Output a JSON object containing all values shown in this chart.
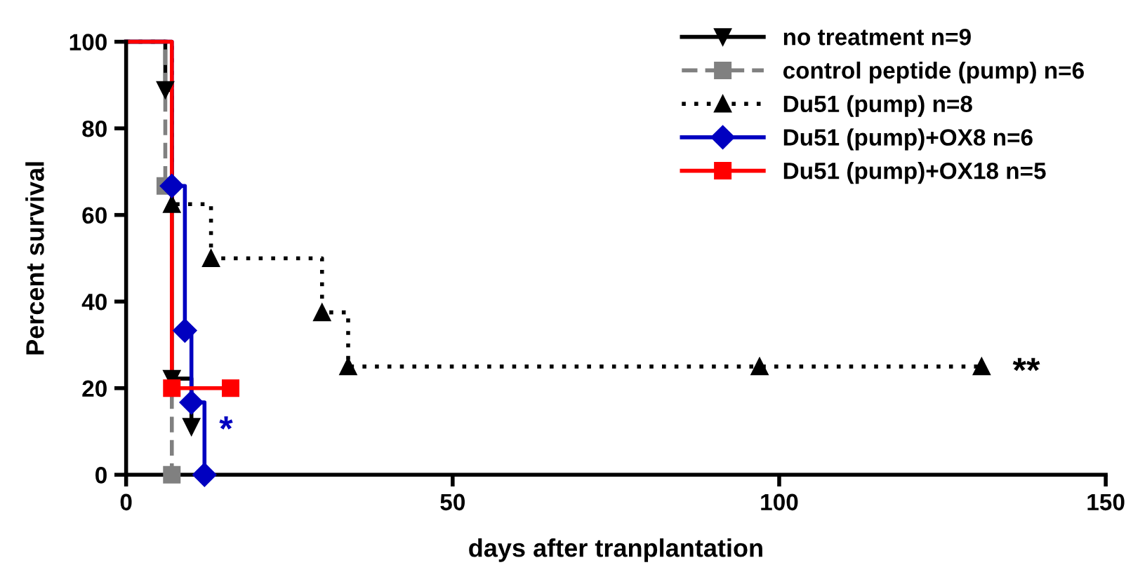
{
  "chart_data": {
    "type": "step",
    "xlabel": "days after tranplantation",
    "ylabel": "Percent survival",
    "xlim": [
      0,
      150
    ],
    "xticks": [
      0,
      50,
      100,
      150
    ],
    "ylim": [
      0,
      100
    ],
    "yticks": [
      0,
      20,
      40,
      60,
      80,
      100
    ],
    "grid": false,
    "legend": "top right",
    "series": [
      {
        "name": "no treatment n=9",
        "color": "#000000",
        "marker": "triangle_down",
        "line_style": "solid",
        "x": [
          0,
          6,
          7,
          10
        ],
        "values": [
          100,
          88.9,
          22.2,
          11.1
        ]
      },
      {
        "name": "control peptide (pump) n=6",
        "color": "#808080",
        "marker": "square",
        "line_style": "dashed",
        "x": [
          0,
          6,
          7
        ],
        "values": [
          100,
          66.7,
          0
        ]
      },
      {
        "name": "Du51 (pump) n=8",
        "color": "#000000",
        "marker": "triangle",
        "line_style": "dotted",
        "x": [
          0,
          7,
          13,
          30,
          34,
          97,
          131
        ],
        "values": [
          100,
          62.5,
          50,
          37.5,
          25,
          25,
          25
        ]
      },
      {
        "name": "Du51 (pump)+OX8 n=6",
        "color": "#0000c0",
        "marker": "diamond",
        "line_style": "solid",
        "x": [
          0,
          7,
          9,
          10,
          12
        ],
        "values": [
          100,
          66.7,
          33.3,
          16.7,
          0
        ]
      },
      {
        "name": "Du51 (pump)+OX18 n=5",
        "color": "#ff0000",
        "marker": "square",
        "line_style": "solid",
        "x": [
          0,
          7,
          16
        ],
        "values": [
          100,
          20,
          20
        ]
      }
    ],
    "annotations": [
      "*",
      "**"
    ]
  }
}
